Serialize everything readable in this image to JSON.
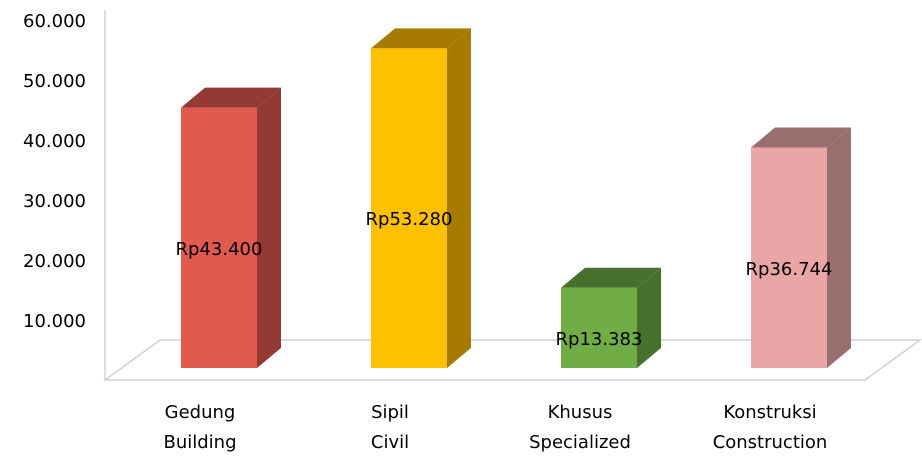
{
  "chart_data": {
    "type": "bar3d",
    "categories": [
      [
        "Gedung",
        "Building"
      ],
      [
        "Sipil",
        "Civil"
      ],
      [
        "Khusus",
        "Specialized"
      ],
      [
        "Konstruksi",
        "Construction"
      ]
    ],
    "values": [
      43400,
      53280,
      13383,
      36744
    ],
    "value_labels": [
      "Rp43.400",
      "Rp53.280",
      "Rp13.383",
      "Rp36.744"
    ],
    "colors": [
      "#e05a4e",
      "#ffc000",
      "#70ad47",
      "#eaa6a6"
    ],
    "side_colors": [
      "#923a33",
      "#a67c00",
      "#48702d",
      "#9a6e6e"
    ],
    "ylim": [
      0,
      60000
    ],
    "yticks": [
      {
        "value": 10000,
        "label": "10.000"
      },
      {
        "value": 20000,
        "label": "20.000"
      },
      {
        "value": 30000,
        "label": "30.000"
      },
      {
        "value": 40000,
        "label": "40.000"
      },
      {
        "value": 50000,
        "label": "50.000"
      },
      {
        "value": 60000,
        "label": "60.000"
      }
    ]
  }
}
